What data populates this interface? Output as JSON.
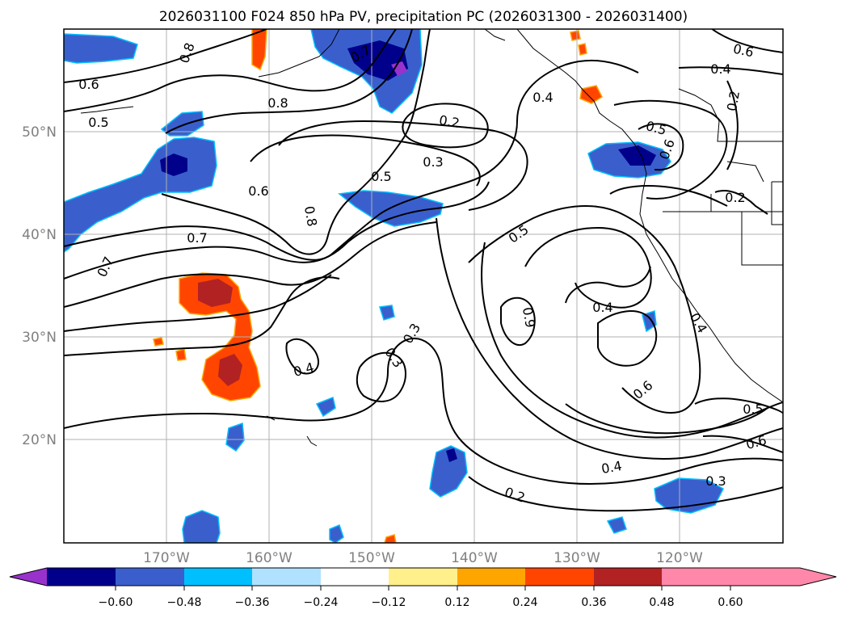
{
  "title": "2026031100 F024 850 hPa PV, precipitation PC (2026031300 - 2026031400)",
  "map": {
    "lat_labels": [
      "50°N",
      "40°N",
      "30°N",
      "20°N"
    ],
    "lon_labels": [
      "170°W",
      "160°W",
      "150°W",
      "140°W",
      "130°W",
      "120°W"
    ]
  },
  "contour_labels": [
    "0.8",
    "0.6",
    "0.5",
    "0.8",
    "0.7",
    "0.4",
    "0.2",
    "0.3",
    "0.5",
    "0.6",
    "0.8",
    "0.7",
    "0.7",
    "0.5",
    "0.4",
    "0.9",
    "0.3",
    "0.3",
    "0.4",
    "0.6",
    "0.4",
    "0.5",
    "0.2",
    "0.6",
    "0.4",
    "0.5",
    "0.6",
    "0.4",
    "0.3",
    "0.2",
    "0.2",
    "0.6"
  ],
  "colorbar": {
    "ticks": [
      "−0.60",
      "−0.48",
      "−0.36",
      "−0.24",
      "−0.12",
      "0.12",
      "0.24",
      "0.36",
      "0.48",
      "0.60"
    ],
    "colors": [
      "#9932cc",
      "#00008b",
      "#3a5fcd",
      "#00bfff",
      "#b0e2ff",
      "#ffffff",
      "#fff08c",
      "#ffa500",
      "#ff4500",
      "#b22222",
      "#ff88aa"
    ]
  }
}
